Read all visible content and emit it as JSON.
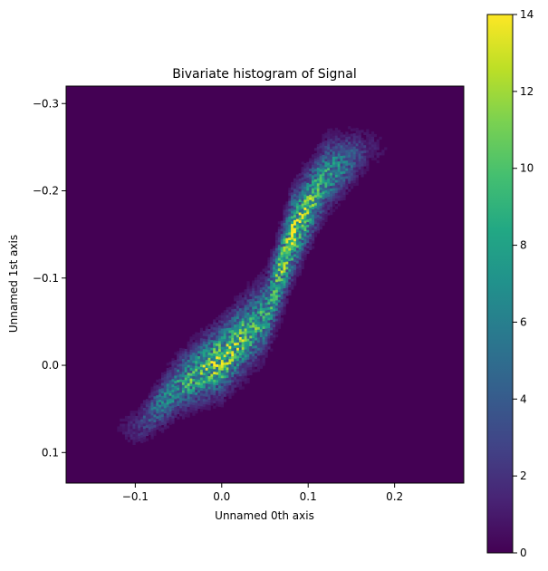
{
  "chart_data": {
    "type": "heatmap",
    "title": "Bivariate histogram of  Signal",
    "xlabel": "Unnamed 0th axis",
    "ylabel": "Unnamed 1st axis",
    "xlim": [
      -0.18,
      0.28
    ],
    "ylim": [
      0.135,
      -0.32
    ],
    "y_inverted": true,
    "xticks": [
      -0.1,
      0.0,
      0.1,
      0.2
    ],
    "xtick_labels": [
      "−0.1",
      "0.0",
      "0.1",
      "0.2"
    ],
    "yticks": [
      -0.3,
      -0.2,
      -0.1,
      0.0,
      0.1
    ],
    "ytick_labels": [
      "−0.3",
      "−0.2",
      "−0.1",
      "0.0",
      "0.1"
    ],
    "colormap": "viridis",
    "color_range": [
      0,
      14
    ],
    "colorbar_ticks": [
      0,
      2,
      4,
      6,
      8,
      10,
      12,
      14
    ],
    "colorbar_tick_labels": [
      "0",
      "2",
      "4",
      "6",
      "8",
      "10",
      "12",
      "14"
    ],
    "background_color": "#440154",
    "density_ridge": [
      {
        "x": -0.1,
        "y": 0.07,
        "peak": 3,
        "width": 0.012
      },
      {
        "x": -0.05,
        "y": 0.02,
        "peak": 7,
        "width": 0.018
      },
      {
        "x": 0.0,
        "y": -0.01,
        "peak": 11,
        "width": 0.022
      },
      {
        "x": 0.05,
        "y": -0.06,
        "peak": 7,
        "width": 0.024
      },
      {
        "x": 0.08,
        "y": -0.15,
        "peak": 11,
        "width": 0.026
      },
      {
        "x": 0.12,
        "y": -0.22,
        "peak": 7,
        "width": 0.022
      },
      {
        "x": 0.17,
        "y": -0.25,
        "peak": 2,
        "width": 0.014
      }
    ],
    "max_count": 14
  }
}
